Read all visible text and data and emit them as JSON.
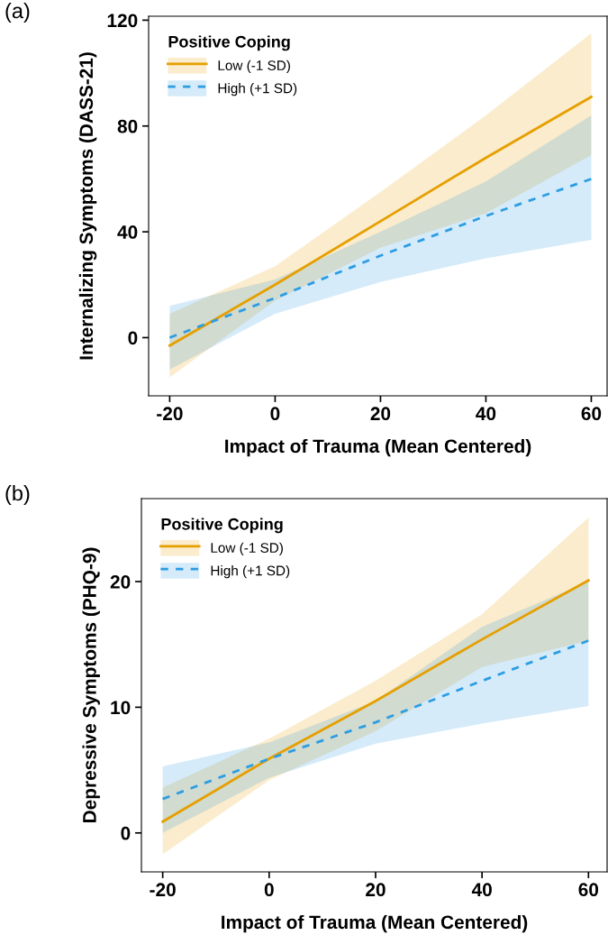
{
  "chart_data": [
    {
      "type": "line",
      "title": "(a)",
      "xlabel": "Impact of Trauma (Mean Centered)",
      "ylabel": "Internalizing Symptoms (DASS-21)",
      "legend_title": "Positive Coping",
      "legend": "top left",
      "grid": false,
      "xlim": [
        -24,
        63
      ],
      "ylim": [
        -22,
        121.5
      ],
      "xticks": [
        -20,
        0,
        20,
        40,
        60
      ],
      "yticks": [
        0,
        40,
        80,
        120
      ],
      "x": [
        -20,
        0,
        20,
        40,
        60
      ],
      "series": [
        {
          "name": "Low (-1 SD)",
          "color": "#e69f00",
          "line_style": "solid",
          "values": [
            -3,
            20,
            44,
            68,
            91
          ],
          "lower": [
            -15,
            14,
            34,
            47,
            69
          ],
          "upper": [
            9,
            27,
            55,
            84,
            115
          ]
        },
        {
          "name": "High (+1 SD)",
          "color": "#2b9de3",
          "line_style": "dashed",
          "values": [
            0,
            15,
            31,
            46,
            60
          ],
          "lower": [
            -12,
            9,
            21,
            30,
            37
          ],
          "upper": [
            12,
            22,
            40,
            59,
            84
          ]
        }
      ]
    },
    {
      "type": "line",
      "title": "(b)",
      "xlabel": "Impact of Trauma (Mean Centered)",
      "ylabel": "Depressive Symptoms (PHQ-9)",
      "legend_title": "Positive Coping",
      "legend": "top left",
      "grid": false,
      "xlim": [
        -24,
        63.5
      ],
      "ylim": [
        -3.1,
        26.6
      ],
      "xticks": [
        -20,
        0,
        20,
        40,
        60
      ],
      "yticks": [
        0,
        10,
        20
      ],
      "x": [
        -20,
        0,
        20,
        40,
        60
      ],
      "series": [
        {
          "name": "Low (-1 SD)",
          "color": "#e69f00",
          "line_style": "solid",
          "values": [
            0.9,
            5.9,
            10.5,
            15.4,
            20.1
          ],
          "lower": [
            -1.7,
            4.2,
            8.1,
            13.2,
            15.3
          ],
          "upper": [
            3.6,
            7.5,
            12.1,
            17.4,
            25.1
          ]
        },
        {
          "name": "High (+1 SD)",
          "color": "#2b9de3",
          "line_style": "dashed",
          "values": [
            2.7,
            5.9,
            8.8,
            12.1,
            15.3
          ],
          "lower": [
            0,
            4.4,
            7.1,
            8.7,
            10.1
          ],
          "upper": [
            5.3,
            7.2,
            10.5,
            16.4,
            20.0
          ]
        }
      ]
    }
  ]
}
